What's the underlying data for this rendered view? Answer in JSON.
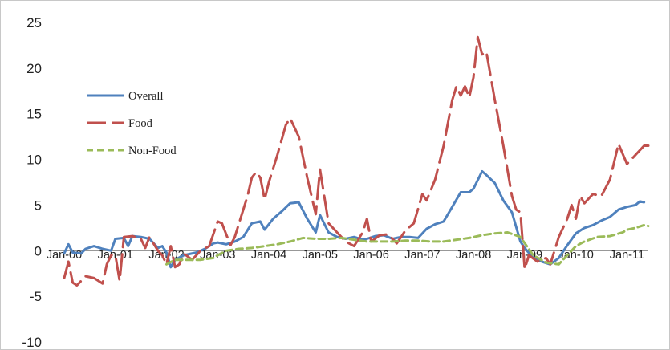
{
  "chart_data": {
    "type": "line",
    "title": "",
    "xlabel": "",
    "ylabel": "",
    "ylim": [
      -10,
      25
    ],
    "yticks": [
      -10,
      -5,
      0,
      5,
      10,
      15,
      20,
      25
    ],
    "xtick_labels": [
      "Jan-00",
      "Jan-01",
      "Jan-02",
      "Jan-03",
      "Jan-04",
      "Jan-05",
      "Jan-06",
      "Jan-07",
      "Jan-08",
      "Jan-09",
      "Jan-10",
      "Jan-11"
    ],
    "grid": false,
    "legend_position": "upper-left",
    "series": [
      {
        "name": "Overall",
        "color": "#4f81bd",
        "dash": "solid",
        "points": [
          [
            "2000-01",
            -0.3
          ],
          [
            "2000-02",
            0.7
          ],
          [
            "2000-03",
            -0.2
          ],
          [
            "2000-05",
            -0.3
          ],
          [
            "2000-06",
            0.2
          ],
          [
            "2000-08",
            0.5
          ],
          [
            "2000-10",
            0.2
          ],
          [
            "2000-12",
            0.0
          ],
          [
            "2001-01",
            1.3
          ],
          [
            "2001-03",
            1.4
          ],
          [
            "2001-04",
            0.5
          ],
          [
            "2001-05",
            1.6
          ],
          [
            "2001-07",
            1.5
          ],
          [
            "2001-09",
            1.3
          ],
          [
            "2001-11",
            0.3
          ],
          [
            "2001-12",
            0.5
          ],
          [
            "2002-01",
            -0.2
          ],
          [
            "2002-02",
            -1.8
          ],
          [
            "2002-03",
            -1.0
          ],
          [
            "2002-05",
            -0.5
          ],
          [
            "2002-08",
            -0.2
          ],
          [
            "2002-10",
            0.2
          ],
          [
            "2002-12",
            0.8
          ],
          [
            "2003-01",
            0.9
          ],
          [
            "2003-03",
            0.7
          ],
          [
            "2003-05",
            1.0
          ],
          [
            "2003-07",
            1.5
          ],
          [
            "2003-09",
            3.0
          ],
          [
            "2003-11",
            3.2
          ],
          [
            "2003-12",
            2.3
          ],
          [
            "2004-02",
            3.5
          ],
          [
            "2004-04",
            4.3
          ],
          [
            "2004-06",
            5.2
          ],
          [
            "2004-08",
            5.3
          ],
          [
            "2004-10",
            3.5
          ],
          [
            "2004-12",
            2.0
          ],
          [
            "2005-01",
            3.9
          ],
          [
            "2005-03",
            2.0
          ],
          [
            "2005-05",
            1.5
          ],
          [
            "2005-07",
            1.3
          ],
          [
            "2005-09",
            1.5
          ],
          [
            "2005-11",
            1.2
          ],
          [
            "2005-12",
            1.3
          ],
          [
            "2006-02",
            1.6
          ],
          [
            "2006-04",
            1.7
          ],
          [
            "2006-06",
            1.3
          ],
          [
            "2006-08",
            1.5
          ],
          [
            "2006-10",
            1.5
          ],
          [
            "2006-12",
            1.4
          ],
          [
            "2007-02",
            2.4
          ],
          [
            "2007-04",
            2.9
          ],
          [
            "2007-06",
            3.2
          ],
          [
            "2007-08",
            4.8
          ],
          [
            "2007-10",
            6.4
          ],
          [
            "2007-12",
            6.4
          ],
          [
            "2008-01",
            6.8
          ],
          [
            "2008-03",
            8.7
          ],
          [
            "2008-04",
            8.3
          ],
          [
            "2008-06",
            7.4
          ],
          [
            "2008-08",
            5.5
          ],
          [
            "2008-10",
            4.2
          ],
          [
            "2008-12",
            1.0
          ],
          [
            "2009-01",
            0.3
          ],
          [
            "2009-03",
            -0.8
          ],
          [
            "2009-05",
            -1.2
          ],
          [
            "2009-07",
            -1.5
          ],
          [
            "2009-09",
            -0.8
          ],
          [
            "2009-11",
            0.6
          ],
          [
            "2010-01",
            1.9
          ],
          [
            "2010-03",
            2.5
          ],
          [
            "2010-05",
            2.8
          ],
          [
            "2010-07",
            3.3
          ],
          [
            "2010-09",
            3.7
          ],
          [
            "2010-11",
            4.5
          ],
          [
            "2011-01",
            4.8
          ],
          [
            "2011-03",
            5.0
          ],
          [
            "2011-04",
            5.4
          ],
          [
            "2011-05",
            5.3
          ]
        ]
      },
      {
        "name": "Food",
        "color": "#c0504d",
        "dash": "long-dash",
        "points": [
          [
            "2000-01",
            -3.0
          ],
          [
            "2000-02",
            -1.2
          ],
          [
            "2000-03",
            -3.5
          ],
          [
            "2000-04",
            -3.8
          ],
          [
            "2000-06",
            -2.8
          ],
          [
            "2000-08",
            -3.0
          ],
          [
            "2000-10",
            -3.6
          ],
          [
            "2000-11",
            -1.5
          ],
          [
            "2000-12",
            -0.5
          ],
          [
            "2001-01",
            -0.5
          ],
          [
            "2001-02",
            -3.3
          ],
          [
            "2001-03",
            1.5
          ],
          [
            "2001-05",
            1.6
          ],
          [
            "2001-07",
            1.3
          ],
          [
            "2001-08",
            0.3
          ],
          [
            "2001-09",
            1.5
          ],
          [
            "2001-11",
            0.0
          ],
          [
            "2001-12",
            -0.5
          ],
          [
            "2002-01",
            -1.5
          ],
          [
            "2002-02",
            0.5
          ],
          [
            "2002-03",
            -1.8
          ],
          [
            "2002-04",
            -1.5
          ],
          [
            "2002-05",
            -0.3
          ],
          [
            "2002-07",
            -1.0
          ],
          [
            "2002-09",
            0.0
          ],
          [
            "2002-11",
            0.5
          ],
          [
            "2003-01",
            3.2
          ],
          [
            "2003-02",
            3.0
          ],
          [
            "2003-04",
            0.6
          ],
          [
            "2003-05",
            1.5
          ],
          [
            "2003-07",
            4.5
          ],
          [
            "2003-08",
            6.0
          ],
          [
            "2003-09",
            8.0
          ],
          [
            "2003-10",
            8.6
          ],
          [
            "2003-11",
            8.0
          ],
          [
            "2003-12",
            5.6
          ],
          [
            "2004-01",
            7.5
          ],
          [
            "2004-03",
            10.5
          ],
          [
            "2004-05",
            13.8
          ],
          [
            "2004-06",
            14.5
          ],
          [
            "2004-08",
            12.5
          ],
          [
            "2004-10",
            8.0
          ],
          [
            "2004-12",
            4.0
          ],
          [
            "2005-01",
            8.9
          ],
          [
            "2005-03",
            3.0
          ],
          [
            "2005-05",
            2.0
          ],
          [
            "2005-07",
            1.0
          ],
          [
            "2005-09",
            0.5
          ],
          [
            "2005-11",
            2.0
          ],
          [
            "2005-12",
            3.5
          ],
          [
            "2006-01",
            1.0
          ],
          [
            "2006-03",
            1.7
          ],
          [
            "2006-05",
            1.8
          ],
          [
            "2006-07",
            0.8
          ],
          [
            "2006-09",
            2.2
          ],
          [
            "2006-11",
            3.0
          ],
          [
            "2007-01",
            6.2
          ],
          [
            "2007-02",
            5.5
          ],
          [
            "2007-04",
            7.8
          ],
          [
            "2007-06",
            11.5
          ],
          [
            "2007-08",
            16.5
          ],
          [
            "2007-09",
            18.0
          ],
          [
            "2007-10",
            17.0
          ],
          [
            "2007-11",
            18.0
          ],
          [
            "2007-12",
            16.8
          ],
          [
            "2008-01",
            19.0
          ],
          [
            "2008-02",
            23.4
          ],
          [
            "2008-03",
            21.5
          ],
          [
            "2008-04",
            21.8
          ],
          [
            "2008-06",
            16.5
          ],
          [
            "2008-08",
            11.5
          ],
          [
            "2008-10",
            6.0
          ],
          [
            "2008-11",
            4.5
          ],
          [
            "2008-12",
            4.2
          ],
          [
            "2009-01",
            -2.0
          ],
          [
            "2009-02",
            -0.5
          ],
          [
            "2009-04",
            -1.2
          ],
          [
            "2009-06",
            -0.8
          ],
          [
            "2009-07",
            -1.5
          ],
          [
            "2009-09",
            1.5
          ],
          [
            "2009-11",
            3.5
          ],
          [
            "2009-12",
            5.0
          ],
          [
            "2010-01",
            3.5
          ],
          [
            "2010-02",
            6.0
          ],
          [
            "2010-03",
            5.2
          ],
          [
            "2010-05",
            6.2
          ],
          [
            "2010-07",
            6.0
          ],
          [
            "2010-09",
            7.8
          ],
          [
            "2010-11",
            11.7
          ],
          [
            "2011-01",
            9.5
          ],
          [
            "2011-03",
            10.5
          ],
          [
            "2011-05",
            11.5
          ],
          [
            "2011-06",
            11.5
          ]
        ]
      },
      {
        "name": "Non-Food",
        "color": "#9bbb59",
        "dash": "short-dash",
        "points": [
          [
            "2002-01",
            -1.5
          ],
          [
            "2002-03",
            -1.0
          ],
          [
            "2002-06",
            -1.0
          ],
          [
            "2002-09",
            -1.0
          ],
          [
            "2002-12",
            -0.8
          ],
          [
            "2003-01",
            -0.5
          ],
          [
            "2003-03",
            0.0
          ],
          [
            "2003-06",
            0.2
          ],
          [
            "2003-09",
            0.3
          ],
          [
            "2003-12",
            0.5
          ],
          [
            "2004-03",
            0.7
          ],
          [
            "2004-06",
            1.0
          ],
          [
            "2004-09",
            1.4
          ],
          [
            "2004-12",
            1.3
          ],
          [
            "2005-03",
            1.3
          ],
          [
            "2005-06",
            1.4
          ],
          [
            "2005-09",
            1.2
          ],
          [
            "2005-12",
            1.0
          ],
          [
            "2006-03",
            1.0
          ],
          [
            "2006-06",
            1.0
          ],
          [
            "2006-09",
            1.1
          ],
          [
            "2006-12",
            1.1
          ],
          [
            "2007-03",
            1.0
          ],
          [
            "2007-06",
            1.0
          ],
          [
            "2007-09",
            1.2
          ],
          [
            "2007-12",
            1.4
          ],
          [
            "2008-03",
            1.7
          ],
          [
            "2008-06",
            1.9
          ],
          [
            "2008-09",
            2.0
          ],
          [
            "2008-12",
            1.5
          ],
          [
            "2009-03",
            -0.5
          ],
          [
            "2009-06",
            -1.3
          ],
          [
            "2009-09",
            -1.5
          ],
          [
            "2009-11",
            -0.5
          ],
          [
            "2010-01",
            0.5
          ],
          [
            "2010-03",
            1.0
          ],
          [
            "2010-06",
            1.5
          ],
          [
            "2010-09",
            1.6
          ],
          [
            "2010-12",
            2.0
          ],
          [
            "2011-01",
            2.3
          ],
          [
            "2011-03",
            2.5
          ],
          [
            "2011-05",
            2.8
          ],
          [
            "2011-06",
            2.7
          ]
        ]
      }
    ]
  }
}
